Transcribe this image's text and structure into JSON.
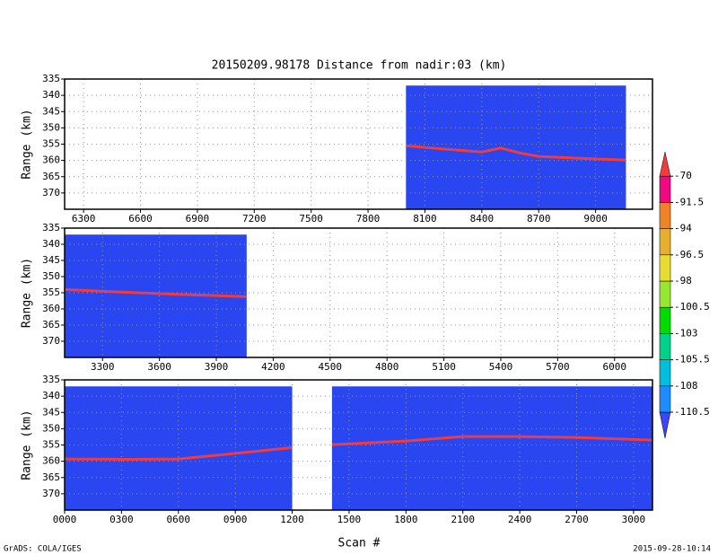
{
  "title": "20150209.98178    Distance from nadir:03 (km)",
  "x_label": "Scan #",
  "credit": "GrADS: COLA/IGES",
  "timestamp": "2015-09-28-10:14",
  "colorbar": {
    "levels": [
      -110.5,
      -108,
      -105.5,
      -103,
      -100.5,
      -98,
      -96.5,
      -94,
      -91.5,
      -70
    ],
    "colors": [
      "#3c46f5",
      "#1e8cff",
      "#00bede",
      "#00d28c",
      "#00dc00",
      "#96e632",
      "#e6dc32",
      "#e6af2d",
      "#f08228",
      "#f00a82",
      "#f03c3c"
    ]
  },
  "chart_data": [
    {
      "type": "curtain",
      "y_label": "Range (km)",
      "xlim": [
        6200,
        9300
      ],
      "ylim": [
        335,
        375
      ],
      "xticks": [
        6300,
        6600,
        6900,
        7200,
        7500,
        7800,
        8100,
        8400,
        8700,
        9000
      ],
      "yticks": [
        335,
        340,
        345,
        350,
        355,
        360,
        365,
        370
      ],
      "grid": true,
      "fill": "#2a46f0",
      "coverage": [
        {
          "x": [
            8000,
            9160
          ],
          "top": 337
        }
      ],
      "surface": {
        "color": "#f03c3c",
        "x": [
          8000,
          8200,
          8400,
          8500,
          8600,
          8700,
          8900,
          9160
        ],
        "values": [
          355.5,
          356.5,
          357.4,
          356.2,
          357.7,
          358.8,
          359.3,
          359.9
        ]
      }
    },
    {
      "type": "curtain",
      "y_label": "Range (km)",
      "xlim": [
        3100,
        6200
      ],
      "ylim": [
        335,
        375
      ],
      "xticks": [
        3300,
        3600,
        3900,
        4200,
        4500,
        4800,
        5100,
        5400,
        5700,
        6000
      ],
      "yticks": [
        335,
        340,
        345,
        350,
        355,
        360,
        365,
        370
      ],
      "grid": true,
      "fill": "#2a46f0",
      "coverage": [
        {
          "x": [
            3100,
            4060
          ],
          "top": 337
        }
      ],
      "surface": {
        "color": "#f03c3c",
        "x": [
          3100,
          3400,
          3700,
          4060
        ],
        "values": [
          354.0,
          354.8,
          355.5,
          356.2
        ]
      }
    },
    {
      "type": "curtain",
      "y_label": "Range (km)",
      "xlim": [
        0,
        3100
      ],
      "ylim": [
        335,
        375
      ],
      "xticks": [
        {
          "value": 0,
          "label": "0000"
        },
        {
          "value": 300,
          "label": "0300"
        },
        {
          "value": 600,
          "label": "0600"
        },
        {
          "value": 900,
          "label": "0900"
        },
        1200,
        1500,
        1800,
        2100,
        2400,
        2700,
        3000
      ],
      "yticks": [
        335,
        340,
        345,
        350,
        355,
        360,
        365,
        370
      ],
      "grid": true,
      "fill": "#2a46f0",
      "coverage": [
        {
          "x": [
            0,
            1200
          ],
          "top": 337
        },
        {
          "x": [
            1410,
            3100
          ],
          "top": 337
        }
      ],
      "surface": {
        "color": "#f03c3c",
        "x": [
          0,
          300,
          600,
          900,
          1200,
          null,
          1410,
          1800,
          2100,
          2400,
          2700,
          3100
        ],
        "values": [
          359.3,
          359.4,
          359.3,
          357.6,
          355.8,
          null,
          354.9,
          353.8,
          352.4,
          352.4,
          352.7,
          353.5
        ]
      }
    }
  ]
}
